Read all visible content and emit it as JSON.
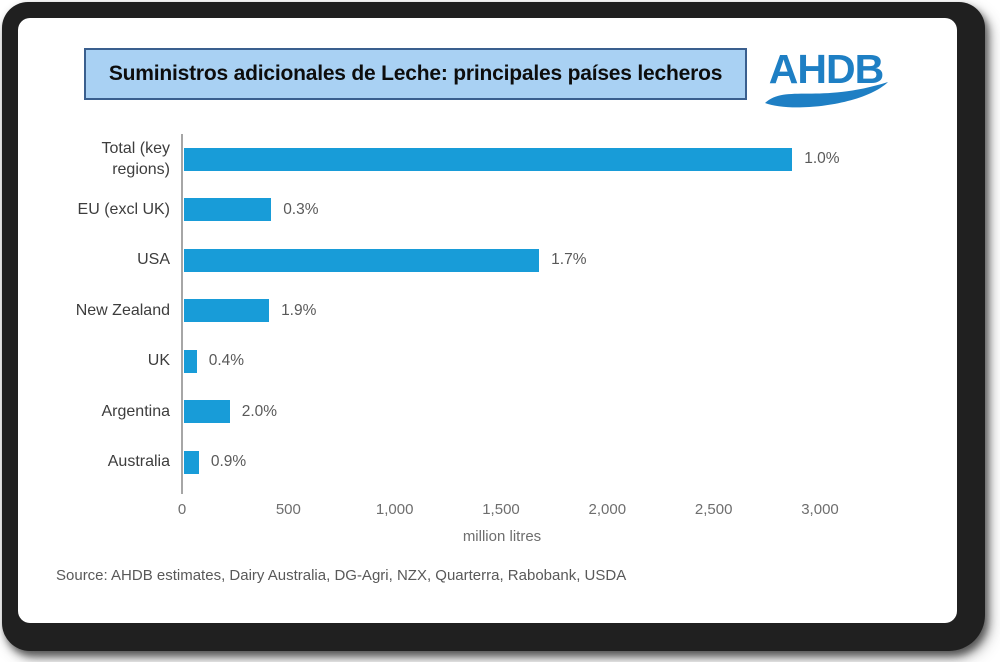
{
  "header": {
    "logo_text": "AHDB"
  },
  "chart_data": {
    "type": "bar",
    "orientation": "horizontal",
    "title": "Suministros adicionales de Leche: principales países lecheros",
    "categories": [
      "Total (key regions)",
      "EU (excl UK)",
      "USA",
      "New Zealand",
      "UK",
      "Argentina",
      "Australia"
    ],
    "values": [
      2860,
      410,
      1670,
      400,
      60,
      215,
      70
    ],
    "bar_labels": [
      "1.0%",
      "0.3%",
      "1.7%",
      "1.9%",
      "0.4%",
      "2.0%",
      "0.9%"
    ],
    "xlabel": "million litres",
    "xlim": [
      0,
      3000
    ],
    "xticks": [
      0,
      500,
      1000,
      1500,
      2000,
      2500,
      3000
    ],
    "xtick_labels": [
      "0",
      "500",
      "1,000",
      "1,500",
      "2,000",
      "2,500",
      "3,000"
    ],
    "grid": false,
    "legend": false,
    "bar_color": "#189cd8"
  },
  "footer": {
    "source": "Source: AHDB estimates, Dairy Australia, DG-Agri, NZX, Quarterra, Rabobank, USDA"
  },
  "colors": {
    "bar": "#189cd8",
    "title_box_bg": "#a9d1f3",
    "title_box_border": "#3a5f8e",
    "logo_blue": "#1e7fc4",
    "axis": "#a6a6a6",
    "label_gray": "#595959",
    "frame": "#202020"
  }
}
